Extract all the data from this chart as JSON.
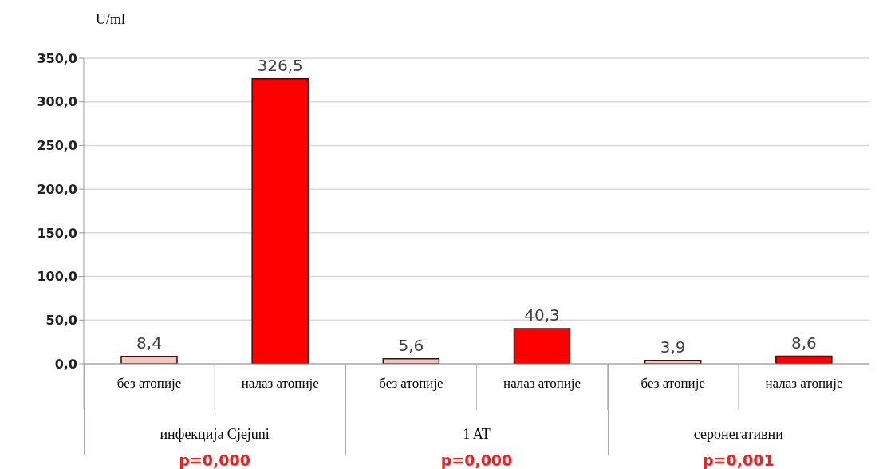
{
  "chart_data": {
    "type": "bar",
    "ylabel": "U/ml",
    "categories": [
      "без атопије",
      "налаз атопије",
      "без атопије",
      "налаз атопије",
      "без атопије",
      "налаз атопије"
    ],
    "values": [
      8.4,
      326.5,
      5.6,
      40.3,
      3.9,
      8.6
    ],
    "colors": [
      "#f4c6c2",
      "#ff0000",
      "#f4c6c2",
      "#ff0000",
      "#f4c6c2",
      "#ff0000"
    ],
    "value_labels": [
      "8,4",
      "326,5",
      "5,6",
      "40,3",
      "3,9",
      "8,6"
    ],
    "ylim": [
      0,
      350
    ],
    "yticks": [
      {
        "value": 0,
        "label": "0,0"
      },
      {
        "value": 50,
        "label": "50,0"
      },
      {
        "value": 100,
        "label": "100,0"
      },
      {
        "value": 150,
        "label": "150,0"
      },
      {
        "value": 200,
        "label": "200,0"
      },
      {
        "value": 250,
        "label": "250,0"
      },
      {
        "value": 300,
        "label": "300,0"
      },
      {
        "value": 350,
        "label": "350,0"
      }
    ],
    "grid": "y",
    "annotations": [
      "инфекција Cjejuni",
      "1 AT",
      "серонегативни",
      "p=0,000",
      "p=0,000",
      "p=0,001"
    ]
  }
}
